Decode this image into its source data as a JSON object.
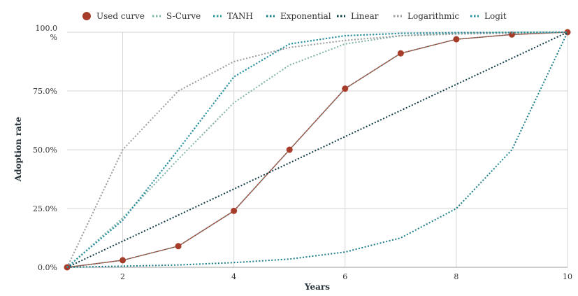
{
  "chart_data": {
    "type": "line",
    "xlabel": "Years",
    "ylabel": "Adoption rate",
    "xlim": [
      1,
      10
    ],
    "ylim": [
      0,
      100
    ],
    "x_ticks": [
      2,
      4,
      6,
      8,
      10
    ],
    "y_ticks": [
      0,
      25,
      50,
      75,
      100
    ],
    "y_tick_labels": [
      "0.0%",
      "25.0%",
      "50.0%",
      "75.0%",
      "100.0\n%"
    ],
    "grid": true,
    "legend_position": "top",
    "x": [
      1,
      2,
      3,
      4,
      5,
      6,
      7,
      8,
      9,
      10
    ],
    "series": [
      {
        "name": "Used curve",
        "color": "#a63d2a",
        "style": "solid-markers",
        "values": [
          0,
          3,
          9,
          24,
          50,
          76,
          91,
          97,
          99,
          100
        ]
      },
      {
        "name": "S-Curve",
        "color": "#7fb3a8",
        "style": "dotted",
        "values": [
          0,
          21,
          46,
          70,
          86,
          95,
          98.5,
          99.5,
          99.9,
          100
        ]
      },
      {
        "name": "TANH",
        "color": "#2c9a9a",
        "style": "dotted",
        "values": [
          0,
          20,
          50,
          81,
          95,
          98.5,
          99.5,
          99.8,
          99.9,
          100
        ]
      },
      {
        "name": "Exponential",
        "color": "#1b7f8a",
        "style": "dotted",
        "values": [
          0,
          0.5,
          1,
          2,
          3.5,
          6.5,
          12.5,
          25,
          50,
          100
        ]
      },
      {
        "name": "Linear",
        "color": "#0d3b45",
        "style": "dotted",
        "values": [
          0,
          11.1,
          22.2,
          33.3,
          44.4,
          55.6,
          66.7,
          77.8,
          88.9,
          100
        ]
      },
      {
        "name": "Logarithmic",
        "color": "#9a9a9a",
        "style": "dotted",
        "values": [
          0,
          50,
          75,
          87.5,
          93.5,
          96.5,
          98.5,
          99.2,
          99.6,
          100
        ]
      },
      {
        "name": "Logit",
        "color": "#2a8fa0",
        "style": "dotted",
        "values": [
          0,
          20,
          50,
          81,
          95,
          98.5,
          99.5,
          99.8,
          99.9,
          100
        ]
      }
    ]
  }
}
